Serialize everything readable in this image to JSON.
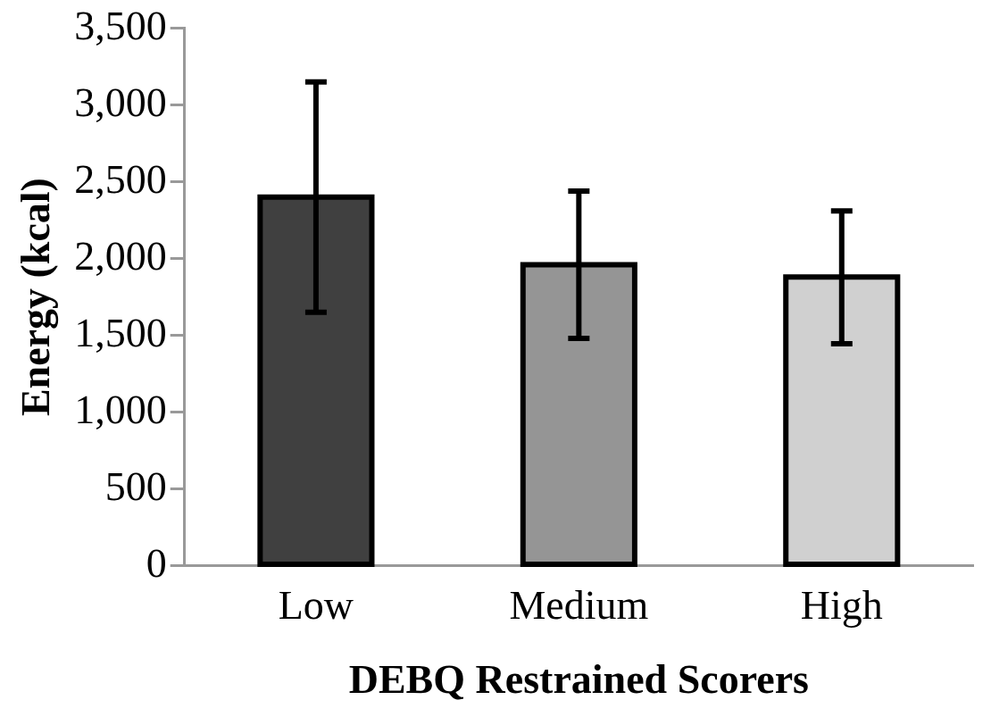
{
  "chart_data": {
    "type": "bar",
    "xlabel": "DEBQ Restrained Scorers",
    "ylabel": "Energy (kcal)",
    "categories": [
      "Low",
      "Medium",
      "High"
    ],
    "values": [
      2400,
      1960,
      1880
    ],
    "colors": [
      "#404040",
      "#959595",
      "#d0d0d0"
    ],
    "errors": [
      [
        1650,
        3150
      ],
      [
        1480,
        2440
      ],
      [
        1445,
        2310
      ]
    ],
    "ylim": [
      0,
      3500
    ],
    "yticks": [
      {
        "value": 0,
        "label": "0"
      },
      {
        "value": 500,
        "label": "500"
      },
      {
        "value": 1000,
        "label": "1,000"
      },
      {
        "value": 1500,
        "label": "1,500"
      },
      {
        "value": 2000,
        "label": "2,000"
      },
      {
        "value": 2500,
        "label": "2,500"
      },
      {
        "value": 3000,
        "label": "3,000"
      },
      {
        "value": 3500,
        "label": "3,500"
      }
    ],
    "grid": false,
    "legend": false
  }
}
